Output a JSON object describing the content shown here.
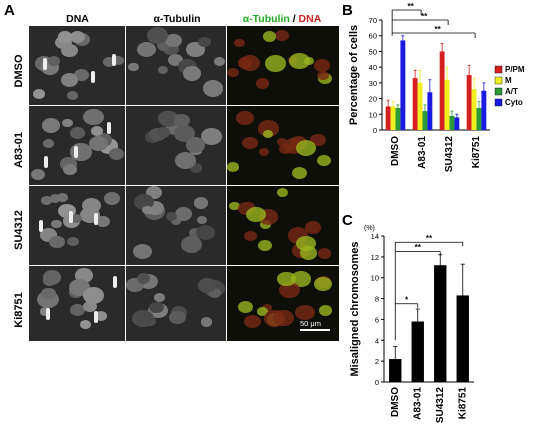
{
  "panel_a": {
    "letter": "A",
    "columns": {
      "dna": "DNA",
      "tubulin": "α-Tubulin",
      "merge_tubulin": "α-Tubulin",
      "merge_sep": " / ",
      "merge_dna": "DNA"
    },
    "rows": [
      "DMSO",
      "A83-01",
      "SU4312",
      "Ki8751"
    ],
    "scale_bar": "50 μm",
    "colors": {
      "tubulin": "#22cc22",
      "dna": "#dd2222"
    }
  },
  "panel_b": {
    "letter": "B",
    "chart_data": {
      "type": "bar",
      "ylabel": "Percentage of cells",
      "ylim": [
        0,
        70
      ],
      "yticks": [
        0,
        10,
        20,
        30,
        40,
        50,
        60,
        70
      ],
      "categories": [
        "DMSO",
        "A83-01",
        "SU4312",
        "Ki8751"
      ],
      "series": [
        {
          "name": "P/PM",
          "color": "#d42020",
          "values": [
            15,
            33,
            50,
            35
          ],
          "errors": [
            4,
            5,
            5,
            6
          ]
        },
        {
          "name": "M",
          "color": "#f0f020",
          "values": [
            15,
            30,
            32,
            26
          ],
          "errors": [
            3,
            8,
            8,
            7
          ]
        },
        {
          "name": "A/T",
          "color": "#2a9a3a",
          "values": [
            14,
            12,
            9,
            14
          ],
          "errors": [
            2,
            4,
            3,
            4
          ]
        },
        {
          "name": "Cyto",
          "color": "#1a1ae0",
          "values": [
            57,
            24,
            8,
            25
          ],
          "errors": [
            3,
            8,
            2,
            5
          ]
        }
      ],
      "significance": [
        "**",
        "**",
        "**"
      ],
      "legend": "right"
    }
  },
  "panel_c": {
    "letter": "C",
    "chart_data": {
      "type": "bar",
      "ylabel": "Misaligned chromosomes",
      "unit": "(%)",
      "ylim": [
        0,
        14
      ],
      "yticks": [
        0,
        2,
        4,
        6,
        8,
        10,
        12,
        14
      ],
      "categories": [
        "DMSO",
        "A83-01",
        "SU4312",
        "Ki8751"
      ],
      "values": [
        2.2,
        5.8,
        11.2,
        8.3
      ],
      "errors": [
        1.2,
        1.2,
        1.0,
        3.0
      ],
      "color": "#000000",
      "significance": [
        "*",
        "**",
        "**"
      ]
    }
  }
}
